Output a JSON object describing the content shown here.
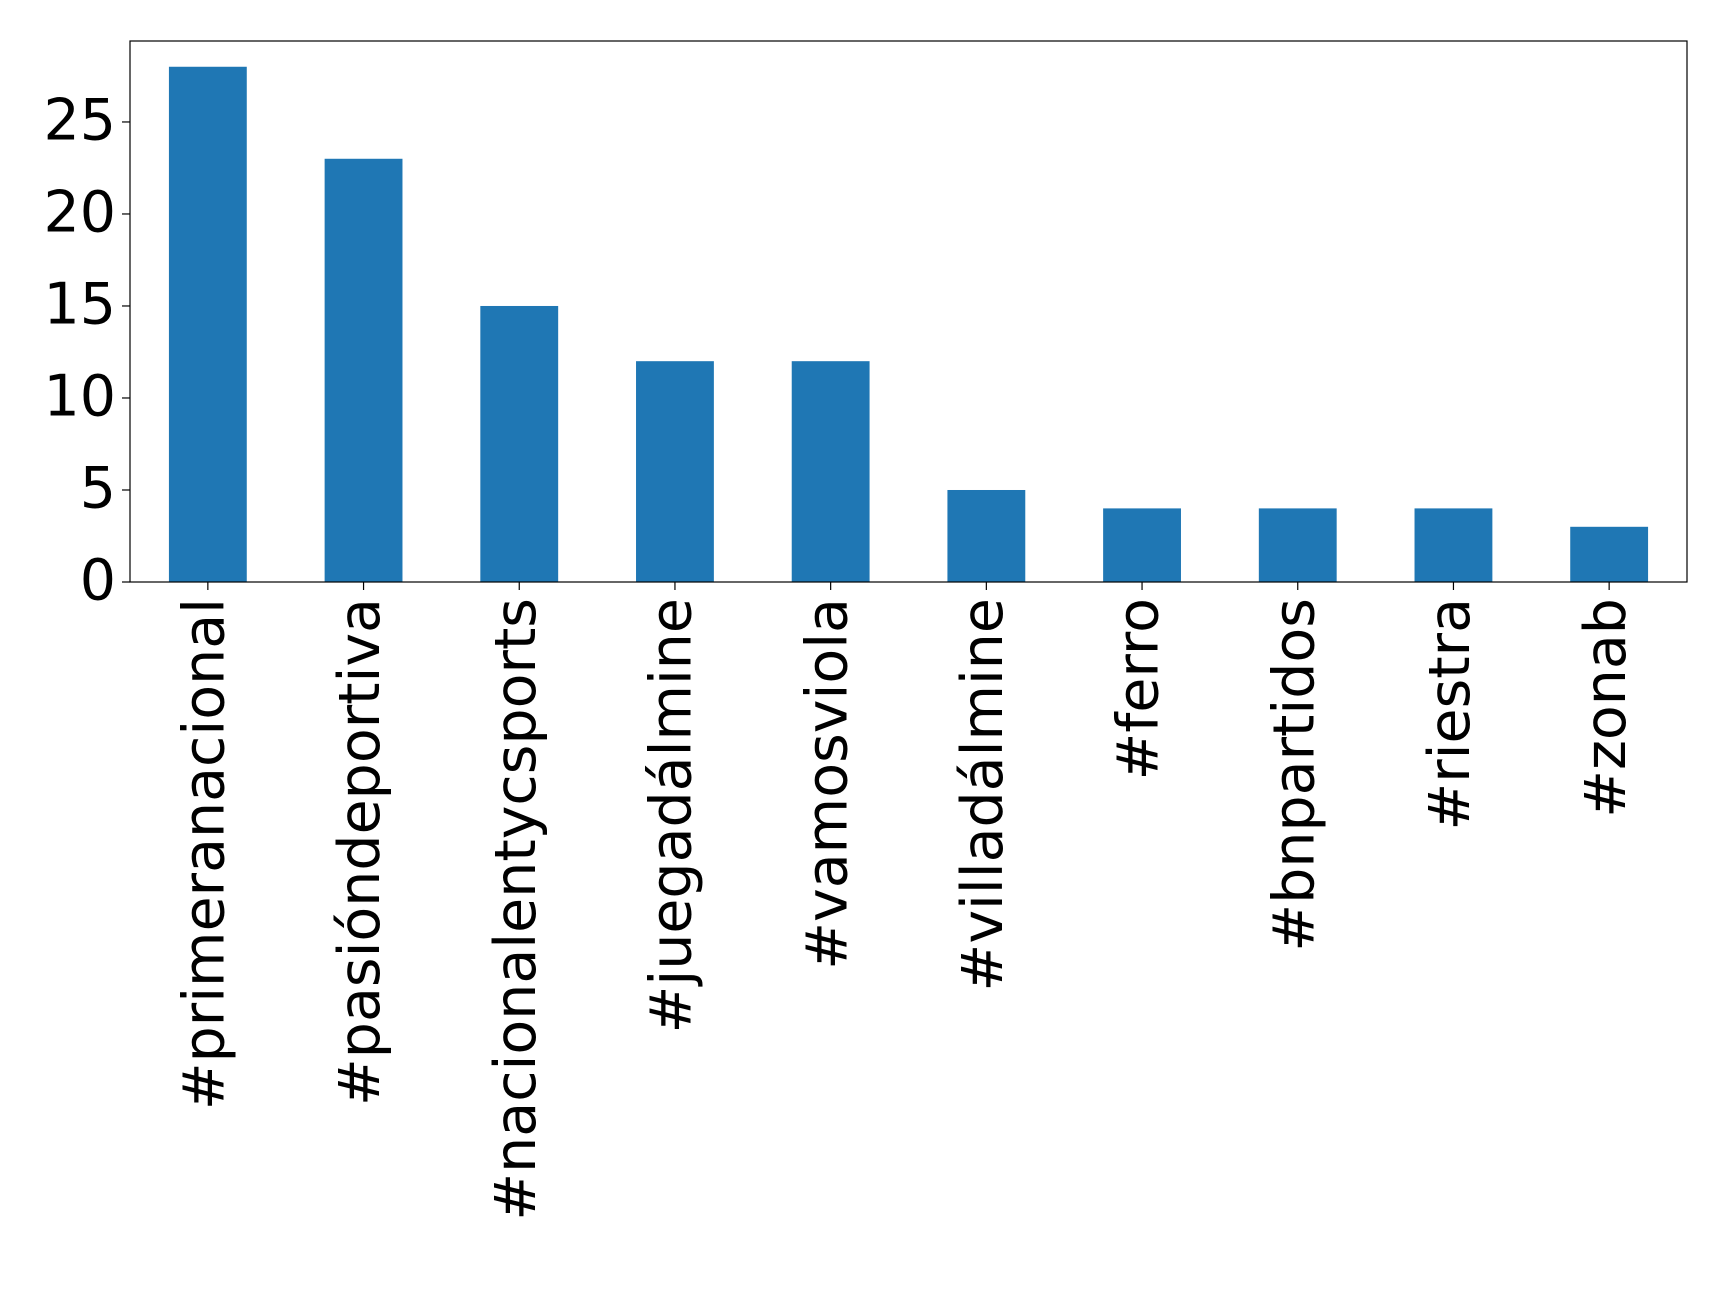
{
  "chart_data": {
    "type": "bar",
    "categories": [
      "#primeranacional",
      "#pasióndeportiva",
      "#nacionalentycsports",
      "#juegadálmine",
      "#vamosviola",
      "#villadálmine",
      "#ferro",
      "#bnpartidos",
      "#riestra",
      "#zonab"
    ],
    "values": [
      28,
      23,
      15,
      12,
      12,
      5,
      4,
      4,
      4,
      3
    ],
    "color": "#1f77b4",
    "ylim": [
      0,
      29.4
    ],
    "yticks": [
      0,
      5,
      10,
      15,
      20,
      25
    ],
    "grid": false
  }
}
